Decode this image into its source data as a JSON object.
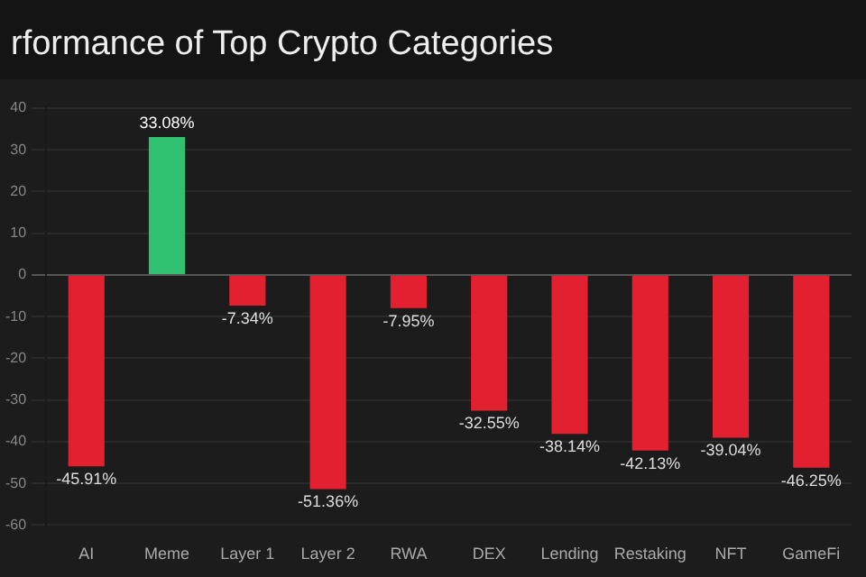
{
  "chart_data": {
    "type": "bar",
    "title": "rformance of Top Crypto Categories",
    "categories": [
      "AI",
      "Meme",
      "Layer 1",
      "Layer 2",
      "RWA",
      "DEX",
      "Lending",
      "Restaking",
      "NFT",
      "GameFi"
    ],
    "values": [
      -45.91,
      33.08,
      -7.34,
      -51.36,
      -7.95,
      -32.55,
      -38.14,
      -42.13,
      -39.04,
      -46.25
    ],
    "colors": [
      "#e3202f",
      "#2fc070",
      "#e3202f",
      "#e3202f",
      "#e3202f",
      "#e3202f",
      "#e3202f",
      "#e3202f",
      "#e3202f",
      "#e3202f"
    ],
    "value_labels": [
      "-45.91%",
      "33.08%",
      "-7.34%",
      "-51.36%",
      "-7.95%",
      "-32.55%",
      "-38.14%",
      "-42.13%",
      "-39.04%",
      "-46.25%"
    ],
    "ylim": [
      -60,
      40
    ],
    "yticks": [
      -60,
      -50,
      -40,
      -30,
      -20,
      -10,
      0,
      10,
      20,
      30,
      40
    ],
    "grid": "y",
    "legend": false
  }
}
